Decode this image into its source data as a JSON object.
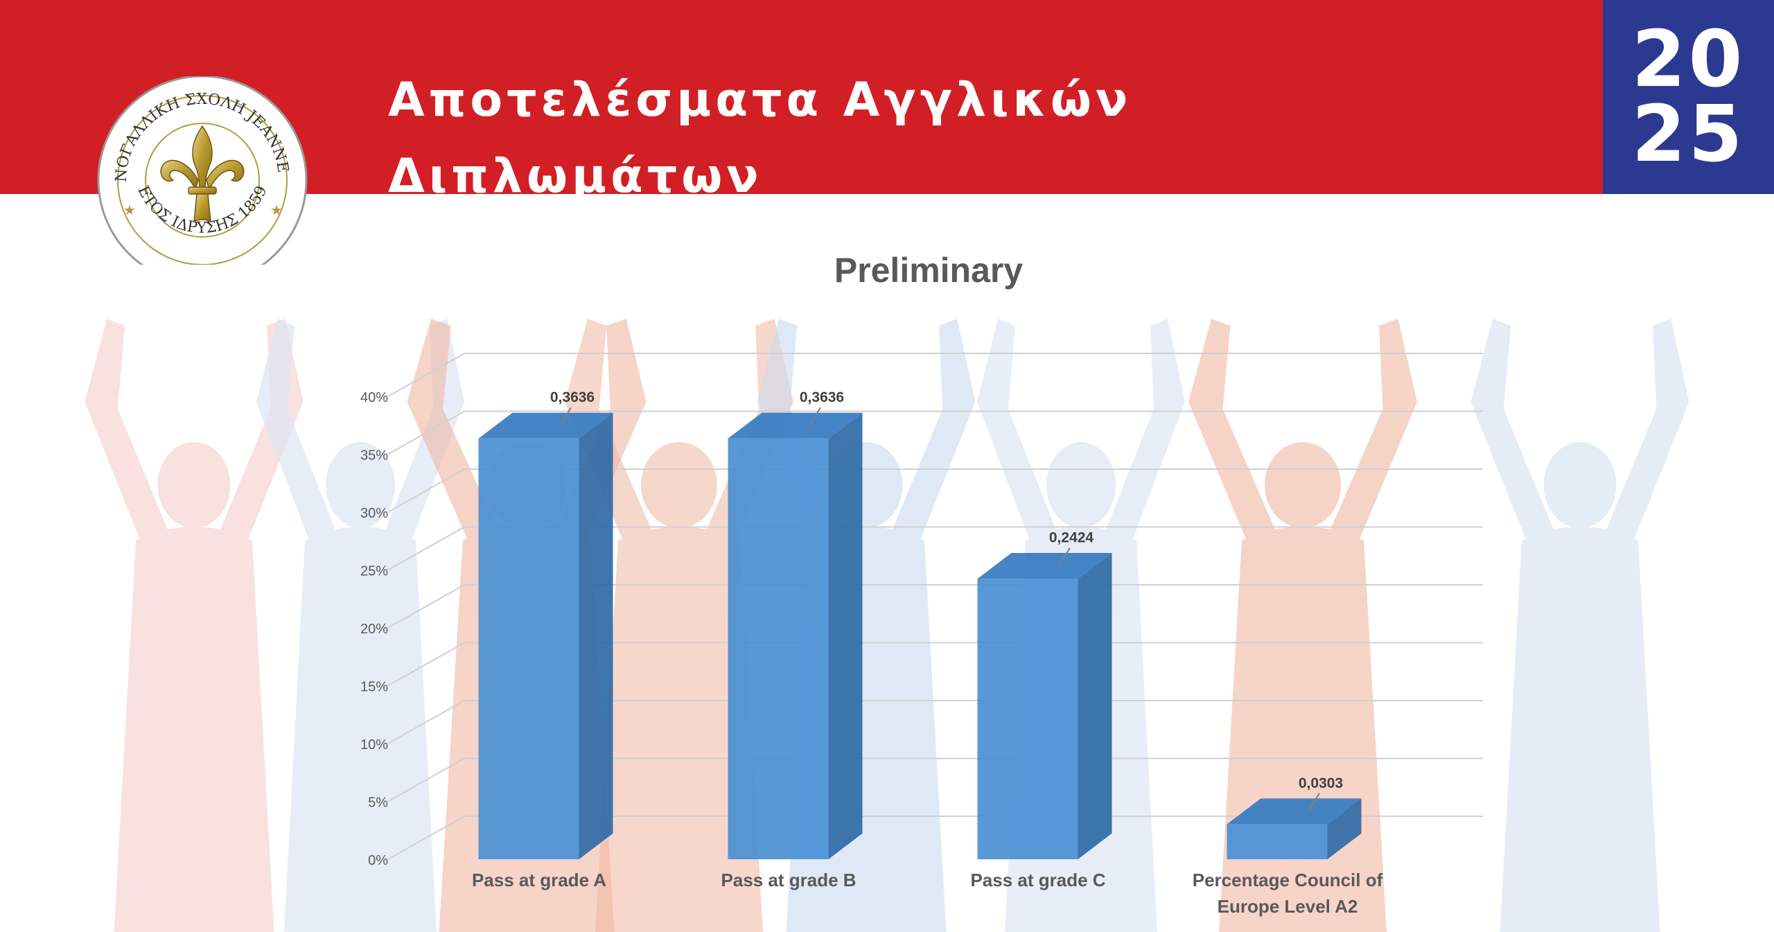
{
  "header": {
    "title": "Αποτελέσματα Αγγλικών Διπλωμάτων",
    "year_line1": "20",
    "year_line2": "25"
  },
  "logo": {
    "arc_text": "ΕΛΛΗΝΟΓΑΛΛΙΚΗ ΣΧΟΛΗ JEANNE D'ARC",
    "bottom_text": "ΕΤΟΣ ΙΔΡΥΣΗΣ 1859",
    "icon": "fleur-de-lis-icon"
  },
  "colors": {
    "brand_red": "#d21f26",
    "brand_blue": "#2b3990",
    "bar_front": "#4a8fd4",
    "bar_side": "#2f6aa6",
    "bar_top": "#3b7dc2"
  },
  "chart_data": {
    "type": "bar",
    "style": "3d-column",
    "title": "Preliminary",
    "categories": [
      "Pass at grade A",
      "Pass at grade B",
      "Pass at grade C",
      "Percentage Council of Europe Level A2"
    ],
    "category_lines": [
      [
        "Pass at grade A"
      ],
      [
        "Pass at grade B"
      ],
      [
        "Pass at grade C"
      ],
      [
        "Percentage Council of",
        "Europe Level A2"
      ]
    ],
    "values": [
      0.3636,
      0.3636,
      0.2424,
      0.0303
    ],
    "data_labels": [
      "0,3636",
      "0,3636",
      "0,2424",
      "0,0303"
    ],
    "y_ticks": [
      "0%",
      "5%",
      "10%",
      "15%",
      "20%",
      "25%",
      "30%",
      "35%",
      "40%"
    ],
    "ylim": [
      0,
      0.4
    ],
    "grid": true,
    "legend": "none"
  }
}
